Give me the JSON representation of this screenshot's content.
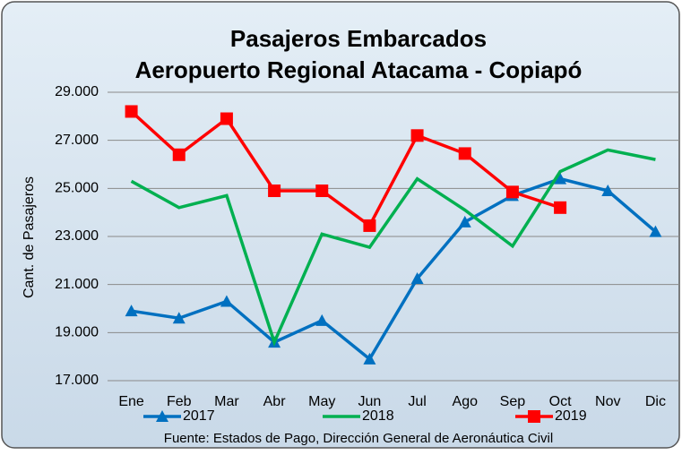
{
  "chart_data": {
    "type": "line",
    "title": "Pasajeros  Embarcados",
    "subtitle": "Aeropuerto Regional Atacama - Copiapó",
    "y_label": "Cant. de Pasajeros",
    "source": "Fuente: Estados de Pago, Dirección General de Aeronáutica Civil",
    "categories": [
      "Ene",
      "Feb",
      "Mar",
      "Abr",
      "May",
      "Jun",
      "Jul",
      "Ago",
      "Sep",
      "Oct",
      "Nov",
      "Dic"
    ],
    "series": [
      {
        "name": "2017",
        "color": "#0070c0",
        "marker": "triangle",
        "values": [
          19900,
          19600,
          20300,
          18600,
          19500,
          17900,
          21250,
          23600,
          24700,
          25400,
          24900,
          23200
        ]
      },
      {
        "name": "2018",
        "color": "#00b050",
        "marker": "none",
        "values": [
          25300,
          24200,
          24700,
          18600,
          23100,
          22550,
          25400,
          24100,
          22600,
          25700,
          26600,
          26200
        ]
      },
      {
        "name": "2019",
        "color": "#ff0000",
        "marker": "square",
        "values": [
          28200,
          26400,
          27900,
          24900,
          24900,
          23450,
          27200,
          26450,
          24850,
          24200,
          null,
          null
        ]
      }
    ],
    "ylim": [
      17000,
      29000
    ],
    "yticks": [
      {
        "value": 17000,
        "label": "17.000"
      },
      {
        "value": 19000,
        "label": "19.000"
      },
      {
        "value": 21000,
        "label": "21.000"
      },
      {
        "value": 23000,
        "label": "23.000"
      },
      {
        "value": 25000,
        "label": "25.000"
      },
      {
        "value": 27000,
        "label": "27.000"
      },
      {
        "value": 29000,
        "label": "29.000"
      }
    ],
    "grid": true
  }
}
